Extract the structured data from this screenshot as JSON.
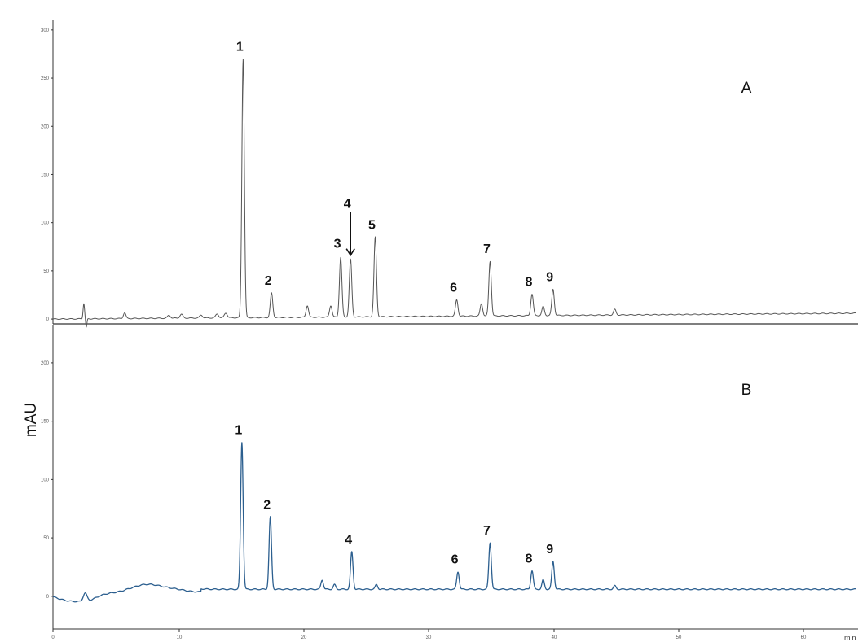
{
  "chart_data": {
    "type": "line",
    "ylabel": "mAU",
    "x_unit": "min",
    "xlim": [
      0,
      65
    ],
    "x_ticks": [
      "0",
      "10",
      "20",
      "30",
      "40",
      "50",
      "60"
    ],
    "colors": {
      "A": "#555555",
      "B": "#2c5f8f",
      "axis": "#333333"
    },
    "panels": [
      {
        "label": "A",
        "ylim": [
          -5,
          310
        ],
        "y_ticks": [
          "0",
          "50",
          "100",
          "150",
          "200",
          "250",
          "300"
        ],
        "baseline": 0,
        "baseline_end": 6,
        "noise": [
          [
            2.5,
            16,
            0.06
          ],
          [
            2.7,
            -9,
            0.05
          ],
          [
            5.8,
            6,
            0.1
          ],
          [
            9.4,
            3,
            0.12
          ],
          [
            10.4,
            4,
            0.12
          ],
          [
            12.0,
            3,
            0.12
          ],
          [
            13.3,
            4,
            0.12
          ],
          [
            14.0,
            5,
            0.12
          ]
        ],
        "peaks": [
          {
            "label": "1",
            "x": 15.4,
            "y": 270
          },
          {
            "label": "2",
            "x": 17.7,
            "y": 27
          },
          {
            "label": "",
            "x": 20.6,
            "y": 14
          },
          {
            "label": "",
            "x": 22.5,
            "y": 14
          },
          {
            "label": "3",
            "x": 23.3,
            "y": 64
          },
          {
            "label": "4",
            "x": 24.1,
            "y": 62
          },
          {
            "label": "5",
            "x": 26.1,
            "y": 85
          },
          {
            "label": "6",
            "x": 32.7,
            "y": 20
          },
          {
            "label": "",
            "x": 34.7,
            "y": 16
          },
          {
            "label": "7",
            "x": 35.4,
            "y": 60
          },
          {
            "label": "8",
            "x": 38.8,
            "y": 26
          },
          {
            "label": "",
            "x": 39.7,
            "y": 13
          },
          {
            "label": "9",
            "x": 40.5,
            "y": 31
          },
          {
            "label": "",
            "x": 45.5,
            "y": 10
          }
        ]
      },
      {
        "label": "B",
        "ylim": [
          -28,
          232
        ],
        "y_ticks": [
          "0",
          "50",
          "100",
          "150",
          "200"
        ],
        "baseline": 6,
        "baseline_end": 6,
        "noise": [
          [
            1.6,
            -4,
            1.2
          ],
          [
            2.6,
            7,
            0.15
          ],
          [
            3.0,
            -2,
            0.6
          ],
          [
            5.8,
            -4,
            1.2
          ],
          [
            7.5,
            3,
            1.2
          ],
          [
            10.2,
            2,
            1.0
          ]
        ],
        "peaks": [
          {
            "label": "1",
            "x": 15.3,
            "y": 132
          },
          {
            "label": "2",
            "x": 17.6,
            "y": 68
          },
          {
            "label": "",
            "x": 21.8,
            "y": 14
          },
          {
            "label": "",
            "x": 22.8,
            "y": 10
          },
          {
            "label": "4",
            "x": 24.2,
            "y": 38
          },
          {
            "label": "",
            "x": 26.2,
            "y": 10
          },
          {
            "label": "6",
            "x": 32.8,
            "y": 21
          },
          {
            "label": "7",
            "x": 35.4,
            "y": 46
          },
          {
            "label": "8",
            "x": 38.8,
            "y": 22
          },
          {
            "label": "",
            "x": 39.7,
            "y": 14
          },
          {
            "label": "9",
            "x": 40.5,
            "y": 30
          },
          {
            "label": "",
            "x": 45.5,
            "y": 9
          }
        ]
      }
    ]
  }
}
